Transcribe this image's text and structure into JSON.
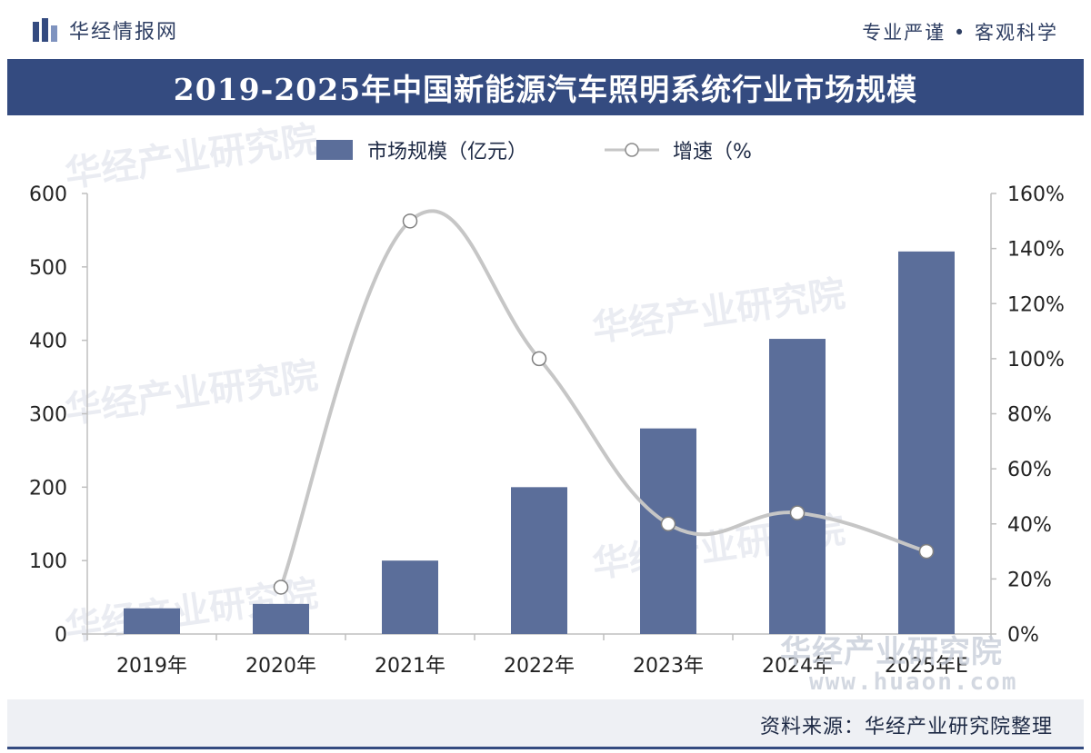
{
  "header": {
    "brand_name": "华经情报网",
    "slogan": "专业严谨 • 客观科学"
  },
  "chart_data": {
    "type": "bar",
    "title": "2019-2025年中国新能源汽车照明系统行业市场规模",
    "categories": [
      "2019年",
      "2020年",
      "2021年",
      "2022年",
      "2023年",
      "2024年",
      "2025年E"
    ],
    "series": [
      {
        "name": "市场规模（亿元）",
        "type": "bar",
        "axis": "left",
        "values": [
          35,
          41,
          100,
          200,
          280,
          402,
          521
        ]
      },
      {
        "name": "增速（%",
        "type": "line",
        "axis": "right",
        "values": [
          null,
          17,
          150,
          100,
          40,
          44,
          30
        ]
      }
    ],
    "y_left": {
      "range": [
        0,
        600
      ],
      "ticks": [
        "0",
        "100",
        "200",
        "300",
        "400",
        "500",
        "600"
      ]
    },
    "y_right": {
      "range": [
        0,
        160
      ],
      "ticks": [
        "0%",
        "20%",
        "40%",
        "60%",
        "80%",
        "100%",
        "120%",
        "140%",
        "160%"
      ]
    },
    "legend_position": "top-center",
    "grid": false,
    "colors": {
      "bar": "#5b6e9a",
      "line": "#c6c6c6",
      "marker_fill": "#ffffff"
    }
  },
  "footer": {
    "source": "资料来源：华经产业研究院整理"
  },
  "watermarks": {
    "brand": "华经产业研究院",
    "site": "www.huaon.com"
  }
}
